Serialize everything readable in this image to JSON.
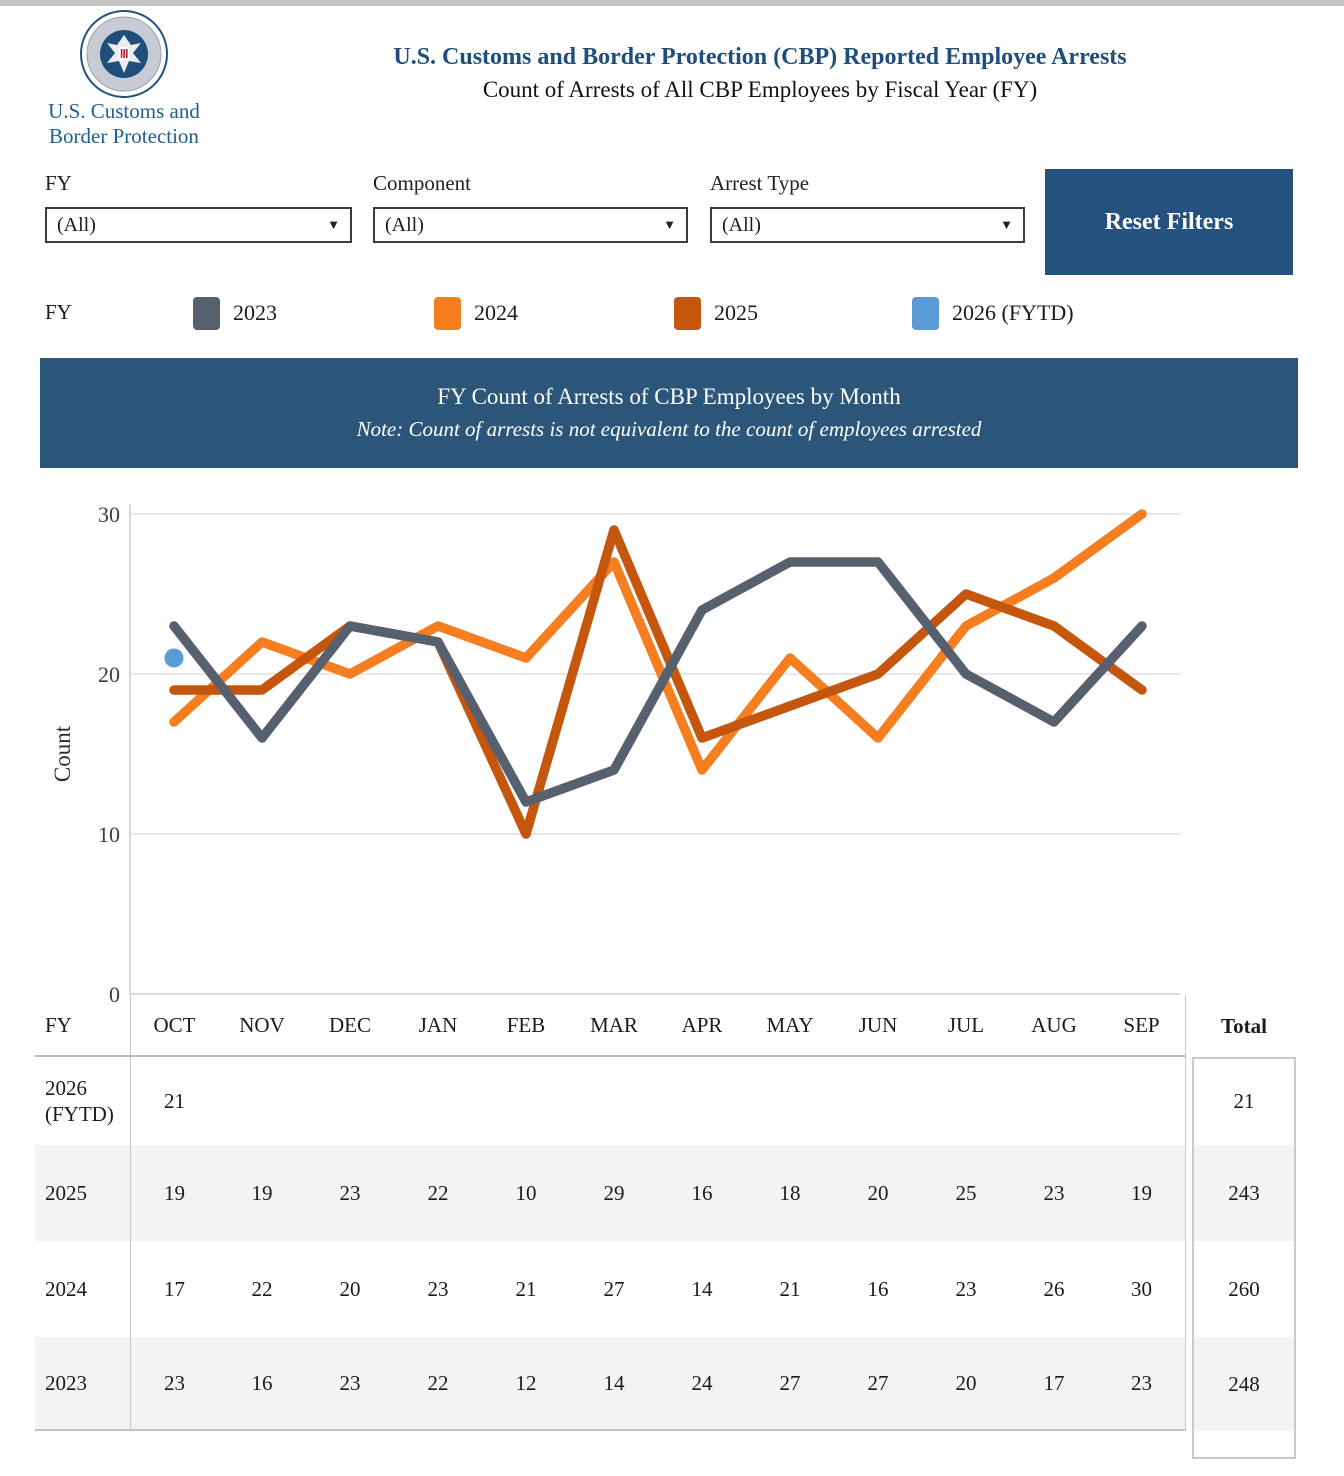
{
  "header": {
    "agency_line1": "U.S. Customs and",
    "agency_line2": "Border Protection",
    "title": "U.S. Customs and Border Protection (CBP) Reported Employee Arrests",
    "subtitle": "Count of Arrests of All CBP Employees by Fiscal Year (FY)"
  },
  "filters": [
    {
      "label": "FY",
      "value": "(All)"
    },
    {
      "label": "Component",
      "value": "(All)"
    },
    {
      "label": "Arrest Type",
      "value": "(All)"
    }
  ],
  "reset": {
    "label": "Reset Filters"
  },
  "legend": {
    "label": "FY",
    "items": [
      {
        "label": "2023",
        "color": "#57606e"
      },
      {
        "label": "2024",
        "color": "#f57e20"
      },
      {
        "label": "2025",
        "color": "#c5560e"
      },
      {
        "label": "2026 (FYTD)",
        "color": "#5b9bd5"
      }
    ]
  },
  "banner": {
    "title": "FY Count of Arrests of CBP Employees by Month",
    "note": "Note: Count of arrests is not equivalent to the count of employees arrested"
  },
  "chart_data": {
    "type": "line",
    "title": "FY Count of Arrests of CBP Employees by Month",
    "xlabel": "",
    "ylabel": "Count",
    "ylim": [
      0,
      30
    ],
    "yticks": [
      0,
      10,
      20,
      30
    ],
    "grid": true,
    "legend_position": "top",
    "categories": [
      "OCT",
      "NOV",
      "DEC",
      "JAN",
      "FEB",
      "MAR",
      "APR",
      "MAY",
      "JUN",
      "JUL",
      "AUG",
      "SEP"
    ],
    "series": [
      {
        "name": "2023",
        "color": "#57606e",
        "values": [
          23,
          16,
          23,
          22,
          12,
          14,
          24,
          27,
          27,
          20,
          17,
          23
        ]
      },
      {
        "name": "2024",
        "color": "#f57e20",
        "values": [
          17,
          22,
          20,
          23,
          21,
          27,
          14,
          21,
          16,
          23,
          26,
          30
        ]
      },
      {
        "name": "2025",
        "color": "#c5560e",
        "values": [
          19,
          19,
          23,
          22,
          10,
          29,
          16,
          18,
          20,
          25,
          23,
          19
        ]
      },
      {
        "name": "2026 (FYTD)",
        "color": "#5b9bd5",
        "values": [
          21
        ]
      }
    ]
  },
  "table": {
    "fy_header": "FY",
    "months": [
      "OCT",
      "NOV",
      "DEC",
      "JAN",
      "FEB",
      "MAR",
      "APR",
      "MAY",
      "JUN",
      "JUL",
      "AUG",
      "SEP"
    ],
    "total_header": "Total",
    "rows": [
      {
        "fy": "2026 (FYTD)",
        "values": [
          "21",
          "",
          "",
          "",
          "",
          "",
          "",
          "",
          "",
          "",
          "",
          ""
        ],
        "total": "21",
        "shaded": false
      },
      {
        "fy": "2025",
        "values": [
          "19",
          "19",
          "23",
          "22",
          "10",
          "29",
          "16",
          "18",
          "20",
          "25",
          "23",
          "19"
        ],
        "total": "243",
        "shaded": true
      },
      {
        "fy": "2024",
        "values": [
          "17",
          "22",
          "20",
          "23",
          "21",
          "27",
          "14",
          "21",
          "16",
          "23",
          "26",
          "30"
        ],
        "total": "260",
        "shaded": false
      },
      {
        "fy": "2023",
        "values": [
          "23",
          "16",
          "23",
          "22",
          "12",
          "14",
          "24",
          "27",
          "27",
          "20",
          "17",
          "23"
        ],
        "total": "248",
        "shaded": true
      }
    ]
  }
}
